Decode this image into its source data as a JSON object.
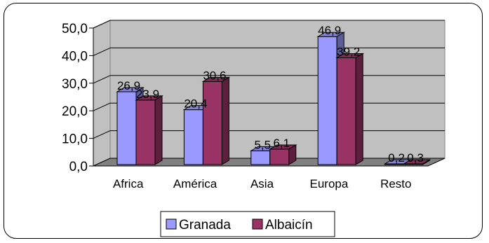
{
  "chart_data": {
    "type": "bar",
    "title": "",
    "xlabel": "",
    "ylabel": "",
    "categories": [
      "Africa",
      "América",
      "Asia",
      "Europa",
      "Resto"
    ],
    "series": [
      {
        "name": "Granada",
        "values": [
          26.9,
          20.4,
          5.5,
          46.9,
          0.2
        ],
        "labels": [
          "26,9",
          "20,4",
          "5,5",
          "46,9",
          "0,2"
        ]
      },
      {
        "name": "Albaicín",
        "values": [
          23.9,
          30.6,
          6.1,
          39.2,
          0.3
        ],
        "labels": [
          "23,9",
          "30,6",
          "6,1",
          "39,2",
          "0,3"
        ]
      }
    ],
    "ylim": [
      0,
      50
    ],
    "yticks": [
      0,
      10,
      20,
      30,
      40,
      50
    ],
    "ytick_labels": [
      "0,0",
      "10,0",
      "20,0",
      "30,0",
      "40,0",
      "50,0"
    ],
    "grid": true,
    "legend_position": "bottom",
    "style": "3d-clustered-column"
  },
  "colors": {
    "series": [
      "#9999ff",
      "#993366"
    ],
    "wall": "#c0c0c0",
    "floor": "#808080",
    "gridline": "#000000"
  }
}
